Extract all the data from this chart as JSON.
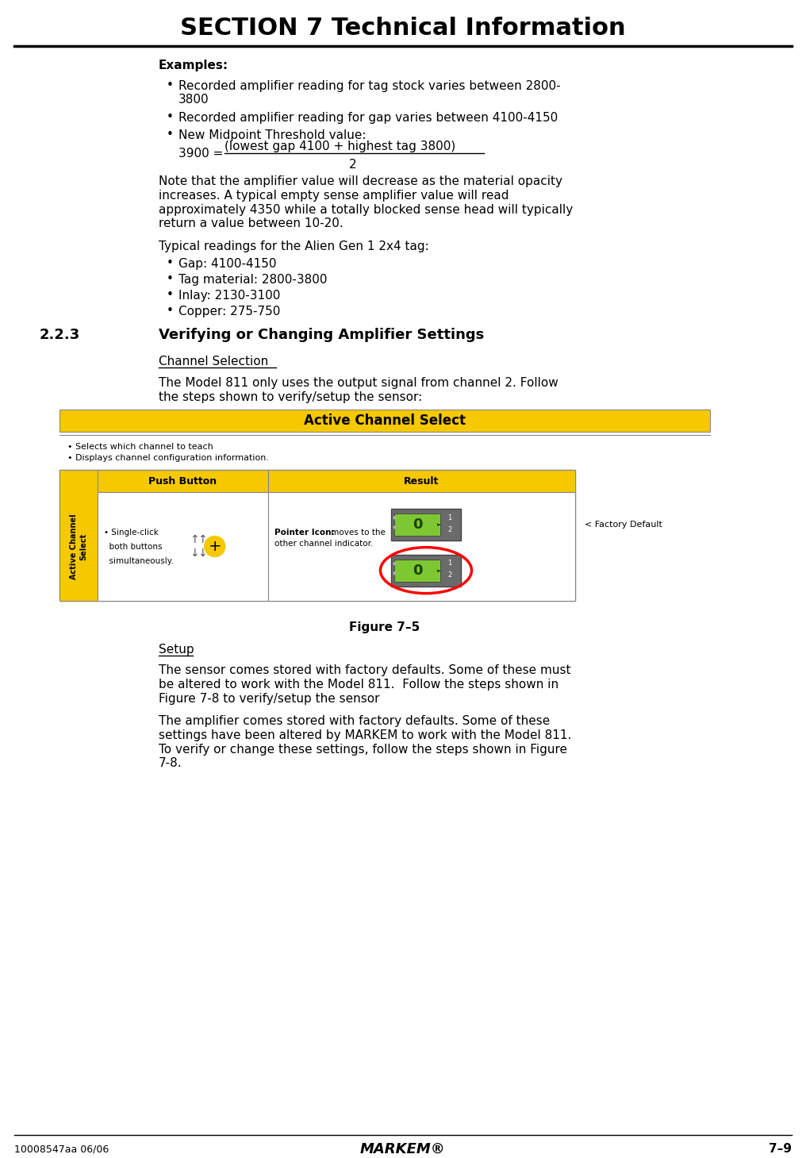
{
  "title": "SECTION 7 Technical Information",
  "footer_left": "10008547aa 06/06",
  "footer_center": "MARKEM®",
  "footer_right": "7–9",
  "bg_color": "#ffffff",
  "header_bar_color": "#f5c800",
  "examples_label": "Examples:",
  "bullet_points_2": [
    "Gap: 4100-4150",
    "Tag material: 2800-3800",
    "Inlay: 2130-3100",
    "Copper: 275-750"
  ],
  "active_channel_title": "Active Channel Select",
  "table_bullet1": "• Selects which channel to teach",
  "table_bullet2": "• Displays channel configuration information.",
  "push_button_label": "Push Button",
  "result_label": "Result",
  "factory_default": "< Factory Default",
  "figure_label": "Figure 7–5"
}
